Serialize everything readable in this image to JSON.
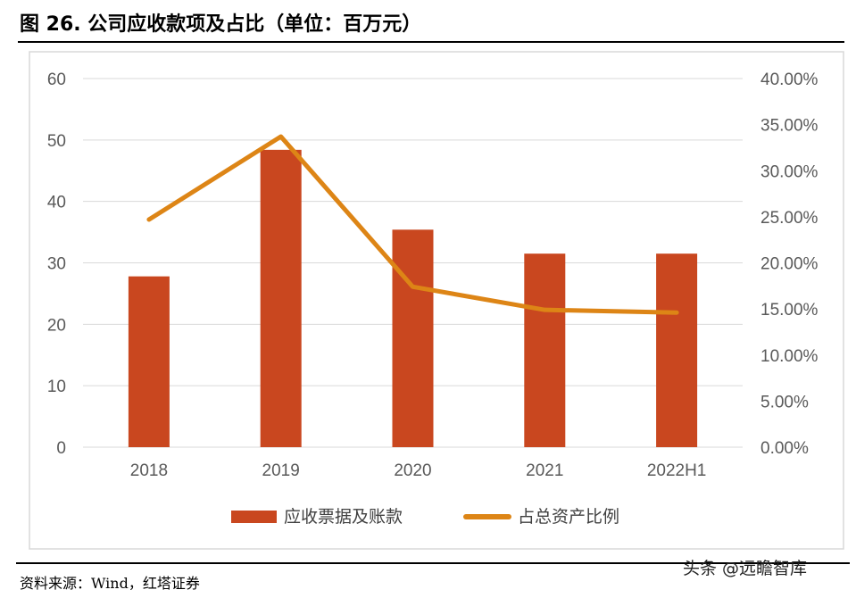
{
  "title": "图 26. 公司应收款项及占比（单位：百万元）",
  "source": "资料来源：Wind，红塔证券",
  "watermark": "头条 @远瞻智库",
  "chart_data": {
    "type": "bar+line",
    "categories": [
      "2018",
      "2019",
      "2020",
      "2021",
      "2022H1"
    ],
    "series": [
      {
        "name": "应收票据及账款",
        "type": "bar",
        "axis": "left",
        "color": "#C9471F",
        "values": [
          27.8,
          48.4,
          35.4,
          31.5,
          31.5
        ]
      },
      {
        "name": "占总资产比例",
        "type": "line",
        "axis": "right",
        "color": "#DD8516",
        "values": [
          24.7,
          33.7,
          17.4,
          14.9,
          14.6
        ]
      }
    ],
    "y_left": {
      "range": [
        0,
        60
      ],
      "ticks": [
        "0",
        "10",
        "20",
        "30",
        "40",
        "50",
        "60"
      ]
    },
    "y_right": {
      "range": [
        0,
        40
      ],
      "ticks": [
        "0.00%",
        "5.00%",
        "10.00%",
        "15.00%",
        "20.00%",
        "25.00%",
        "30.00%",
        "35.00%",
        "40.00%"
      ]
    },
    "grid": true,
    "legend": "bottom"
  }
}
